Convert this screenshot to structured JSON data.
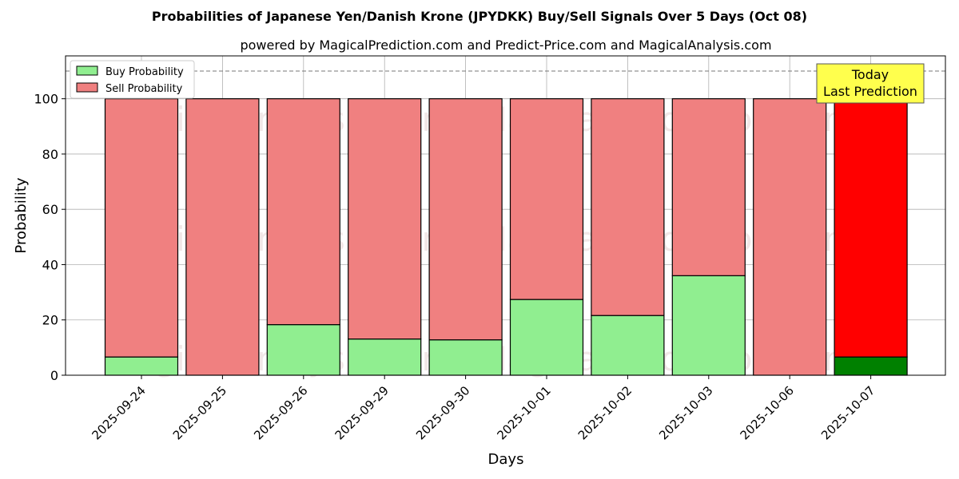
{
  "chart_data": {
    "type": "bar",
    "stacked": true,
    "title": "Probabilities of Japanese Yen/Danish Krone (JPYDKK) Buy/Sell Signals Over 5 Days (Oct 08)",
    "subtitle": "powered by MagicalPrediction.com and Predict-Price.com and MagicalAnalysis.com",
    "xlabel": "Days",
    "ylabel": "Probability",
    "ylim": [
      0,
      115.5
    ],
    "yticks": [
      0,
      20,
      40,
      60,
      80,
      100
    ],
    "grid": true,
    "legend_position": "top-left",
    "categories": [
      "2025-09-24",
      "2025-09-25",
      "2025-09-26",
      "2025-09-29",
      "2025-09-30",
      "2025-10-01",
      "2025-10-02",
      "2025-10-03",
      "2025-10-06",
      "2025-10-07"
    ],
    "series": [
      {
        "name": "Buy Probability",
        "color": "#90ee90",
        "highlight_color": "#008000",
        "values": [
          6.6,
          0,
          18.3,
          13.1,
          12.8,
          27.4,
          21.6,
          36.0,
          0,
          6.6
        ]
      },
      {
        "name": "Sell Probability",
        "color": "#f08080",
        "highlight_color": "#ff0000",
        "values": [
          93.4,
          100,
          81.7,
          86.9,
          87.2,
          72.6,
          78.4,
          64.0,
          100,
          93.4
        ]
      }
    ],
    "reference_line": 110,
    "annotation": {
      "line1": "Today",
      "line2": "Last Prediction",
      "color": "#ffff4d"
    },
    "watermarks": [
      "MagicalAnalysis.com",
      "MagicalPrediction.com"
    ]
  }
}
